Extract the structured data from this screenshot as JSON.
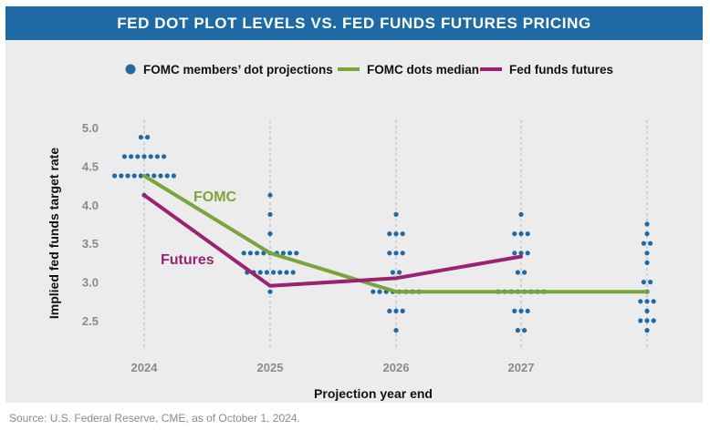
{
  "header": {
    "title": "FED DOT PLOT LEVELS VS. FED FUNDS FUTURES PRICING"
  },
  "footer": {
    "source": "Source: U.S. Federal Reserve, CME, as of October 1, 2024."
  },
  "colors": {
    "title_bar": "#1f6aa5",
    "dots": "#1f6aa5",
    "median": "#7aa53c",
    "futures": "#9b2271",
    "panel": "#ececec"
  },
  "chart_data": {
    "type": "scatter",
    "xlabel": "Projection year end",
    "ylabel": "Implied fed funds target rate",
    "categories": [
      "2024",
      "2025",
      "2026",
      "2027",
      ""
    ],
    "ylim": [
      2.25,
      5.1
    ],
    "yticks": [
      2.5,
      3.0,
      3.5,
      4.0,
      4.5,
      5.0
    ],
    "ytick_labels": [
      "2.5",
      "3.0",
      "3.5",
      "4.0",
      "4.5",
      "5.0"
    ],
    "grid": "vertical dashed lines at each projection year",
    "legend": {
      "placement": "top",
      "entries": [
        "FOMC members’ dot projections",
        "FOMC dots median",
        "Fed funds futures"
      ]
    },
    "dot_projections": [
      {
        "x": "2024",
        "levels": [
          [
            4.875,
            2
          ],
          [
            4.625,
            7
          ],
          [
            4.375,
            10
          ],
          [
            4.125,
            1
          ]
        ]
      },
      {
        "x": "2025",
        "levels": [
          [
            4.125,
            1
          ],
          [
            3.875,
            1
          ],
          [
            3.625,
            1
          ],
          [
            3.375,
            9
          ],
          [
            3.125,
            8
          ],
          [
            2.875,
            1
          ]
        ]
      },
      {
        "x": "2026",
        "levels": [
          [
            3.875,
            1
          ],
          [
            3.625,
            3
          ],
          [
            3.375,
            3
          ],
          [
            3.125,
            2
          ],
          [
            2.875,
            8
          ],
          [
            2.625,
            3
          ],
          [
            2.375,
            1
          ]
        ]
      },
      {
        "x": "2027",
        "levels": [
          [
            3.875,
            1
          ],
          [
            3.625,
            3
          ],
          [
            3.375,
            3
          ],
          [
            3.125,
            2
          ],
          [
            2.875,
            8
          ],
          [
            2.625,
            3
          ],
          [
            2.375,
            2
          ]
        ]
      },
      {
        "x": "",
        "levels": [
          [
            3.75,
            1
          ],
          [
            3.625,
            1
          ],
          [
            3.5,
            2
          ],
          [
            3.375,
            1
          ],
          [
            3.25,
            1
          ],
          [
            3.0,
            2
          ],
          [
            2.875,
            1
          ],
          [
            2.75,
            3
          ],
          [
            2.625,
            1
          ],
          [
            2.5,
            3
          ],
          [
            2.375,
            1
          ]
        ]
      }
    ],
    "series": [
      {
        "name": "FOMC dots median",
        "x": [
          "2024",
          "2025",
          "2026",
          "2027",
          ""
        ],
        "values": [
          4.375,
          3.375,
          2.875,
          2.875,
          2.875
        ]
      },
      {
        "name": "Fed funds futures",
        "x": [
          "2024",
          "2025",
          "2026",
          "2027"
        ],
        "values": [
          4.125,
          2.95,
          3.05,
          3.33
        ]
      }
    ],
    "annotations": [
      {
        "text": "FOMC",
        "series": "FOMC dots median"
      },
      {
        "text": "Futures",
        "series": "Fed funds futures"
      }
    ]
  }
}
